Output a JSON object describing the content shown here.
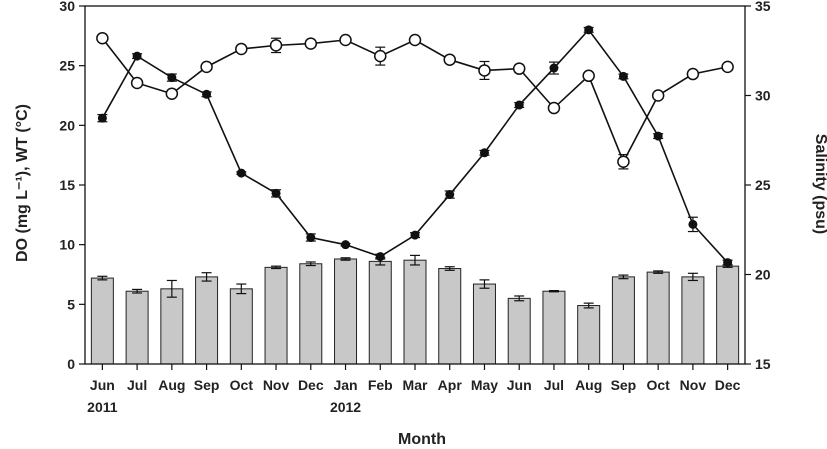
{
  "chart_data": {
    "type": "bar+line",
    "xlabel": "Month",
    "ylabel_left": "DO (mg L⁻¹), WT (°C)",
    "ylabel_right": "Salinity (psu)",
    "ylim_left": [
      0,
      30
    ],
    "ylim_right": [
      15,
      35
    ],
    "yticks_left": [
      "0",
      "5",
      "10",
      "15",
      "20",
      "25",
      "30"
    ],
    "yticks_right": [
      "15",
      "20",
      "25",
      "30",
      "35"
    ],
    "categories": [
      "Jun",
      "Jul",
      "Aug",
      "Sep",
      "Oct",
      "Nov",
      "Dec",
      "Jan",
      "Feb",
      "Mar",
      "Apr",
      "May",
      "Jun",
      "Jul",
      "Aug",
      "Sep",
      "Oct",
      "Nov",
      "Dec"
    ],
    "year_labels": [
      {
        "index": 0,
        "text": "2011"
      },
      {
        "index": 7,
        "text": "2012"
      }
    ],
    "series": [
      {
        "type": "bar",
        "axis": "left",
        "color": "#c8c8c8",
        "values": [
          7.2,
          6.1,
          6.3,
          7.3,
          6.3,
          8.1,
          8.4,
          8.8,
          8.6,
          8.7,
          8.0,
          6.7,
          5.5,
          6.1,
          4.9,
          7.3,
          7.7,
          7.3,
          8.2
        ],
        "errors": [
          0.15,
          0.15,
          0.7,
          0.35,
          0.4,
          0.1,
          0.15,
          0.1,
          0.3,
          0.4,
          0.15,
          0.35,
          0.2,
          0.05,
          0.2,
          0.15,
          0.1,
          0.3,
          0.1
        ]
      },
      {
        "type": "line",
        "axis": "left",
        "marker": "filled-circle",
        "color": "#111111",
        "values": [
          20.6,
          25.8,
          24.0,
          22.6,
          16.0,
          14.3,
          10.6,
          10.0,
          9.0,
          10.8,
          14.2,
          17.7,
          21.7,
          24.8,
          28.0,
          24.1,
          19.1,
          11.7,
          8.5
        ],
        "errors": [
          0.3,
          0.2,
          0.3,
          0.2,
          0.1,
          0.3,
          0.3,
          0.1,
          0.2,
          0.2,
          0.3,
          0.2,
          0.2,
          0.5,
          0.2,
          0.2,
          0.2,
          0.6,
          0.2
        ]
      },
      {
        "type": "line",
        "axis": "right",
        "marker": "open-circle",
        "color": "#111111",
        "values": [
          33.2,
          30.7,
          30.1,
          31.6,
          32.6,
          32.8,
          32.9,
          33.1,
          32.2,
          33.1,
          32.0,
          31.4,
          31.5,
          29.3,
          31.1,
          26.3,
          30.0,
          31.2,
          31.6
        ],
        "errors": [
          0.1,
          0.1,
          0.1,
          0.1,
          0.1,
          0.4,
          0.1,
          0.1,
          0.5,
          0.1,
          0.1,
          0.5,
          0.2,
          0.1,
          0.1,
          0.4,
          0.1,
          0.1,
          0.1
        ]
      }
    ]
  }
}
